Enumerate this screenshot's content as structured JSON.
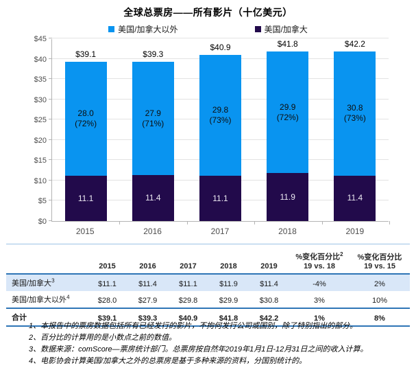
{
  "title": "全球总票房——所有影片（十亿美元）",
  "legend": [
    {
      "label": "美国/加拿大以外",
      "color": "#0994f0"
    },
    {
      "label": "美国/加拿大",
      "color": "#220a4b"
    }
  ],
  "chart_data": {
    "type": "bar",
    "stacked": true,
    "title": "全球总票房——所有影片（十亿美元）",
    "categories": [
      "2015",
      "2016",
      "2017",
      "2018",
      "2019"
    ],
    "series": [
      {
        "name": "美国/加拿大",
        "color": "#220a4b",
        "values": [
          11.1,
          11.4,
          11.1,
          11.9,
          11.4
        ]
      },
      {
        "name": "美国/加拿大以外",
        "color": "#0994f0",
        "values": [
          28.0,
          27.9,
          29.8,
          29.9,
          30.8
        ],
        "percent_labels": [
          "(72%)",
          "(71%)",
          "(73%)",
          "(72%)",
          "(73%)"
        ]
      }
    ],
    "total_labels": [
      "$39.1",
      "$39.3",
      "$40.9",
      "$41.8",
      "$42.2"
    ],
    "ylim": [
      0,
      45
    ],
    "ytick_step": 5,
    "ytick_prefix": "$",
    "grid": true,
    "legend_position": "top"
  },
  "table": {
    "year_headers": [
      "2015",
      "2016",
      "2017",
      "2018",
      "2019"
    ],
    "change_headers": [
      {
        "line1": "%变化百分比",
        "sup": "2",
        "line2": "19 vs. 18"
      },
      {
        "line1": "%变化百分比",
        "sup": "",
        "line2": "19 vs. 15"
      }
    ],
    "rows": [
      {
        "label": "美国/加拿大",
        "sup": "3",
        "highlight": true,
        "bold": false,
        "values": [
          "$11.1",
          "$11.4",
          "$11.1",
          "$11.9",
          "$11.4",
          "-4%",
          "2%"
        ]
      },
      {
        "label": "美国/加拿大以外",
        "sup": "4",
        "highlight": false,
        "bold": false,
        "rule_bottom": true,
        "values": [
          "$28.0",
          "$27.9",
          "$29.8",
          "$29.9",
          "$30.8",
          "3%",
          "10%"
        ]
      },
      {
        "label": "合计",
        "sup": "",
        "highlight": false,
        "bold": true,
        "rule_bottom": true,
        "values": [
          "$39.1",
          "$39.3",
          "$40.9",
          "$41.8",
          "$42.2",
          "1%",
          "8%"
        ]
      }
    ]
  },
  "footnotes": [
    "1、本报告中的票房数据包括所有已经发行的影片，不拘何发行公司或国别，除了特别指出的部分。",
    "2、百分比的计算用的是小数点之前的数值。",
    "3、数据来源：comScore—票房统计部门。总票房按自然年2019年1月1日-12月31日之间的收入计算。",
    "4、电影协会计算美国/加拿大之外的总票房是基于多种来源的资料，分国别统计的。"
  ]
}
